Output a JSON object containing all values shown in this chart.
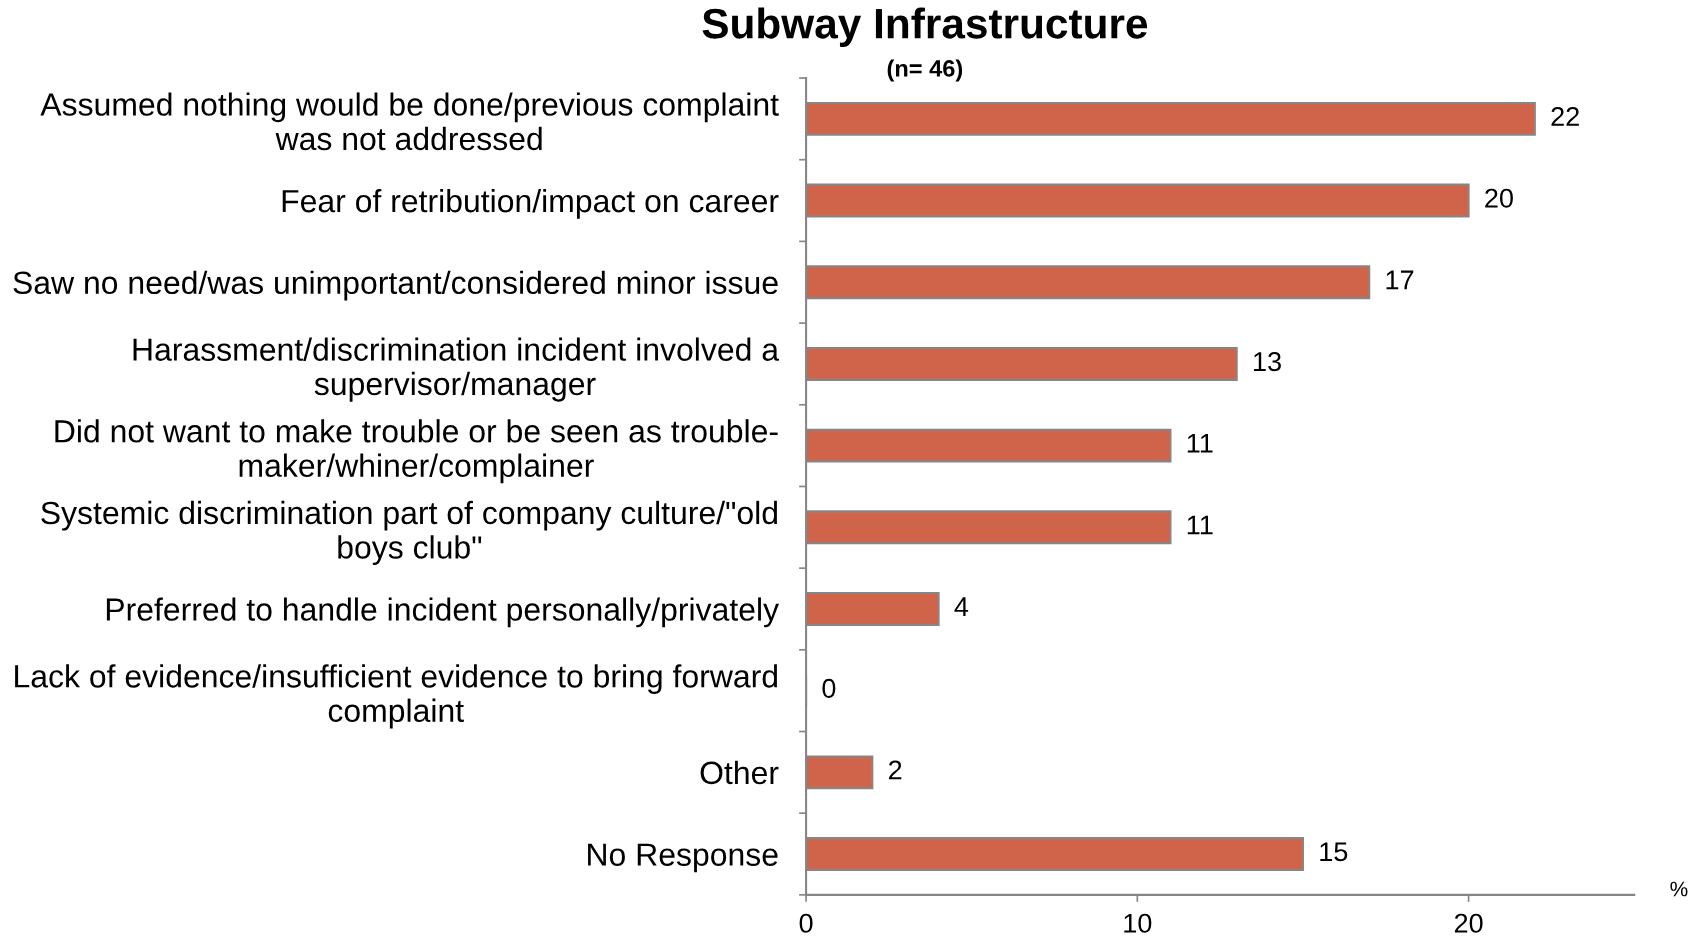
{
  "chart_data": {
    "type": "bar",
    "orientation": "horizontal",
    "title": "Subway Infrastructure",
    "subtitle": "(n= 46)",
    "xlabel": "%",
    "categories": [
      "Assumed nothing would be done/previous complaint\nwas not addressed",
      "Fear of retribution/impact on career",
      "Saw no need/was unimportant/considered minor issue",
      "Harassment/discrimination incident involved a\nsupervisor/manager",
      "Did not want to make trouble or be seen as trouble-\nmaker/whiner/complainer",
      "Systemic discrimination part of company culture/\"old\nboys club\"",
      "Preferred to handle incident personally/privately",
      "Lack of evidence/insufficient evidence to bring forward\ncomplaint",
      "Other",
      "No Response"
    ],
    "values": [
      22,
      20,
      17,
      13,
      11,
      11,
      4,
      0,
      2,
      15
    ],
    "color": "#d0644b",
    "xlim": [
      0,
      25
    ],
    "xticks": [
      0,
      10,
      20
    ],
    "data_labels": true,
    "grid": false,
    "legend": false
  }
}
